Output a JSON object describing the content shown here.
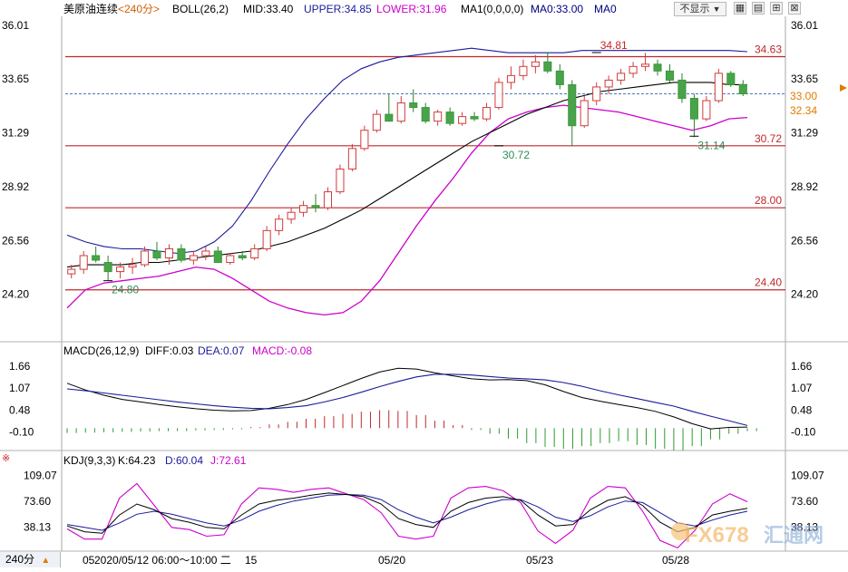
{
  "header": {
    "symbol": "美原油连续",
    "period": "<240分>",
    "boll_label": "BOLL(26,2)",
    "boll_mid": "MID:33.40",
    "boll_upper": "UPPER:34.85",
    "boll_lower": "LOWER:31.96",
    "ma_label": "MA1(0,0,0,0)",
    "ma_value": "MA0:33.00",
    "ma0": "MA0",
    "dropdown": "不显示",
    "colors": {
      "boll_mid": "#000000",
      "upper": "#1a1a9c",
      "lower": "#cc00cc",
      "ma": "#000080"
    }
  },
  "main_panel": {
    "y_ticks": [
      "36.01",
      "33.65",
      "31.29",
      "28.92",
      "26.56",
      "24.20"
    ],
    "price_tag": "33.00",
    "lower_tag": "32.34",
    "h_lines": [
      {
        "value": 34.63,
        "label": "34.63"
      },
      {
        "value": 30.72,
        "label": "30.72"
      },
      {
        "value": 28.0,
        "label": "28.00"
      },
      {
        "value": 24.4,
        "label": "24.40"
      }
    ],
    "annotations": [
      {
        "text": "34.81",
        "value": 34.81,
        "bar": 43,
        "color": "#cc2222"
      },
      {
        "text": "30.72",
        "value": 30.72,
        "bar": 35,
        "color": "#2e8b57"
      },
      {
        "text": "31.14",
        "value": 31.14,
        "bar": 51,
        "color": "#2e8b57"
      },
      {
        "text": "24.80",
        "value": 24.8,
        "bar": 3,
        "color": "#2e8b57"
      }
    ]
  },
  "chart_data": [
    {
      "type": "candlestick",
      "ylim": [
        22.4,
        36.4
      ],
      "bars": [
        {
          "o": 25.1,
          "h": 25.5,
          "l": 24.9,
          "c": 25.3
        },
        {
          "o": 25.3,
          "h": 26.1,
          "l": 25.1,
          "c": 25.9
        },
        {
          "o": 25.9,
          "h": 26.3,
          "l": 25.6,
          "c": 25.7
        },
        {
          "o": 25.6,
          "h": 25.9,
          "l": 24.8,
          "c": 25.2
        },
        {
          "o": 25.2,
          "h": 25.6,
          "l": 24.9,
          "c": 25.4
        },
        {
          "o": 25.4,
          "h": 25.8,
          "l": 25.1,
          "c": 25.5
        },
        {
          "o": 25.5,
          "h": 26.3,
          "l": 25.4,
          "c": 26.1
        },
        {
          "o": 26.1,
          "h": 26.5,
          "l": 25.7,
          "c": 25.8
        },
        {
          "o": 25.8,
          "h": 26.4,
          "l": 25.5,
          "c": 26.2
        },
        {
          "o": 26.2,
          "h": 26.4,
          "l": 25.6,
          "c": 25.7
        },
        {
          "o": 25.7,
          "h": 26.1,
          "l": 25.5,
          "c": 25.9
        },
        {
          "o": 25.9,
          "h": 26.3,
          "l": 25.7,
          "c": 26.1
        },
        {
          "o": 26.1,
          "h": 26.3,
          "l": 25.6,
          "c": 25.6
        },
        {
          "o": 25.6,
          "h": 26.0,
          "l": 25.5,
          "c": 25.9
        },
        {
          "o": 25.9,
          "h": 26.1,
          "l": 25.7,
          "c": 25.8
        },
        {
          "o": 25.8,
          "h": 26.4,
          "l": 25.7,
          "c": 26.2
        },
        {
          "o": 26.2,
          "h": 27.2,
          "l": 26.1,
          "c": 27.0
        },
        {
          "o": 27.0,
          "h": 27.7,
          "l": 26.8,
          "c": 27.5
        },
        {
          "o": 27.5,
          "h": 28.0,
          "l": 27.3,
          "c": 27.8
        },
        {
          "o": 27.8,
          "h": 28.3,
          "l": 27.6,
          "c": 28.1
        },
        {
          "o": 28.1,
          "h": 28.6,
          "l": 27.8,
          "c": 28.0
        },
        {
          "o": 28.0,
          "h": 28.9,
          "l": 27.9,
          "c": 28.7
        },
        {
          "o": 28.7,
          "h": 29.9,
          "l": 28.6,
          "c": 29.7
        },
        {
          "o": 29.7,
          "h": 30.8,
          "l": 29.6,
          "c": 30.6
        },
        {
          "o": 30.6,
          "h": 31.6,
          "l": 30.5,
          "c": 31.4
        },
        {
          "o": 31.4,
          "h": 32.3,
          "l": 31.3,
          "c": 32.1
        },
        {
          "o": 32.1,
          "h": 33.0,
          "l": 31.9,
          "c": 31.8
        },
        {
          "o": 31.8,
          "h": 32.9,
          "l": 31.7,
          "c": 32.6
        },
        {
          "o": 32.6,
          "h": 33.2,
          "l": 32.2,
          "c": 32.4
        },
        {
          "o": 32.4,
          "h": 32.6,
          "l": 31.7,
          "c": 31.8
        },
        {
          "o": 31.8,
          "h": 32.3,
          "l": 31.6,
          "c": 32.2
        },
        {
          "o": 32.2,
          "h": 32.4,
          "l": 31.6,
          "c": 31.7
        },
        {
          "o": 31.7,
          "h": 32.2,
          "l": 31.6,
          "c": 32.0
        },
        {
          "o": 32.0,
          "h": 32.2,
          "l": 31.8,
          "c": 31.9
        },
        {
          "o": 31.9,
          "h": 32.6,
          "l": 31.8,
          "c": 32.4
        },
        {
          "o": 32.4,
          "h": 33.7,
          "l": 32.3,
          "c": 33.5
        },
        {
          "o": 33.5,
          "h": 34.2,
          "l": 33.2,
          "c": 33.8
        },
        {
          "o": 33.8,
          "h": 34.5,
          "l": 33.6,
          "c": 34.2
        },
        {
          "o": 34.2,
          "h": 34.7,
          "l": 33.9,
          "c": 34.4
        },
        {
          "o": 34.4,
          "h": 34.8,
          "l": 33.9,
          "c": 34.0
        },
        {
          "o": 34.0,
          "h": 34.3,
          "l": 33.2,
          "c": 33.4
        },
        {
          "o": 33.4,
          "h": 33.6,
          "l": 30.7,
          "c": 31.6
        },
        {
          "o": 31.6,
          "h": 32.9,
          "l": 31.5,
          "c": 32.7
        },
        {
          "o": 32.7,
          "h": 33.5,
          "l": 32.5,
          "c": 33.3
        },
        {
          "o": 33.3,
          "h": 33.8,
          "l": 33.0,
          "c": 33.6
        },
        {
          "o": 33.6,
          "h": 34.1,
          "l": 33.4,
          "c": 33.9
        },
        {
          "o": 33.9,
          "h": 34.4,
          "l": 33.7,
          "c": 34.2
        },
        {
          "o": 34.2,
          "h": 34.8,
          "l": 34.0,
          "c": 34.3
        },
        {
          "o": 34.3,
          "h": 34.5,
          "l": 33.8,
          "c": 34.0
        },
        {
          "o": 34.0,
          "h": 34.3,
          "l": 33.5,
          "c": 33.6
        },
        {
          "o": 33.6,
          "h": 33.9,
          "l": 32.6,
          "c": 32.8
        },
        {
          "o": 32.8,
          "h": 33.0,
          "l": 31.1,
          "c": 31.9
        },
        {
          "o": 31.9,
          "h": 32.9,
          "l": 31.8,
          "c": 32.7
        },
        {
          "o": 32.7,
          "h": 34.1,
          "l": 32.6,
          "c": 33.9
        },
        {
          "o": 33.9,
          "h": 34.0,
          "l": 33.3,
          "c": 33.4
        },
        {
          "o": 33.4,
          "h": 33.6,
          "l": 32.9,
          "c": 33.0
        }
      ],
      "boll_mid": [
        25.4,
        25.5,
        25.5,
        25.5,
        25.6,
        25.6,
        25.7,
        25.8,
        25.9,
        26.0,
        26.1,
        26.3,
        26.5,
        26.8,
        27.1,
        27.5,
        27.9,
        28.4,
        28.9,
        29.4,
        29.9,
        30.4,
        30.9,
        31.3,
        31.7,
        32.1,
        32.4,
        32.7,
        32.9,
        33.1,
        33.2,
        33.3,
        33.4,
        33.5,
        33.5,
        33.5,
        33.4,
        33.4
      ],
      "boll_upper": [
        26.8,
        26.5,
        26.3,
        26.2,
        26.2,
        26.1,
        26.0,
        26.1,
        26.5,
        27.2,
        28.3,
        29.6,
        30.8,
        31.9,
        32.8,
        33.6,
        34.1,
        34.4,
        34.6,
        34.7,
        34.8,
        34.9,
        35.0,
        34.9,
        34.8,
        34.8,
        34.8,
        34.8,
        34.9,
        34.9,
        34.9,
        34.9,
        34.9,
        34.9,
        34.9,
        34.9,
        34.9,
        34.85
      ],
      "boll_lower": [
        23.6,
        24.4,
        24.7,
        24.8,
        24.9,
        25.0,
        25.2,
        25.4,
        25.3,
        24.9,
        24.4,
        23.9,
        23.6,
        23.4,
        23.3,
        23.4,
        23.9,
        24.8,
        26.0,
        27.2,
        28.3,
        29.3,
        30.4,
        31.3,
        31.9,
        32.2,
        32.4,
        32.5,
        32.4,
        32.3,
        32.2,
        32.0,
        31.8,
        31.6,
        31.4,
        31.6,
        31.9,
        31.96
      ]
    },
    {
      "type": "bar",
      "title": "MACD(26,12,9)",
      "legend": [
        "DIFF:0.03",
        "DEA:0.07",
        "MACD:-0.08"
      ],
      "ylim": [
        -0.55,
        1.85
      ],
      "y_ticks": [
        "1.66",
        "1.07",
        "0.48",
        "-0.10"
      ],
      "diff": [
        1.2,
        1.02,
        0.88,
        0.77,
        0.7,
        0.63,
        0.57,
        0.52,
        0.48,
        0.46,
        0.47,
        0.53,
        0.63,
        0.77,
        0.95,
        1.14,
        1.33,
        1.5,
        1.6,
        1.58,
        1.48,
        1.4,
        1.32,
        1.29,
        1.3,
        1.27,
        1.16,
        0.98,
        0.82,
        0.72,
        0.63,
        0.55,
        0.45,
        0.3,
        0.12,
        -0.02,
        0.02,
        0.03
      ],
      "dea": [
        1.05,
        1.0,
        0.94,
        0.88,
        0.82,
        0.76,
        0.7,
        0.65,
        0.6,
        0.56,
        0.53,
        0.52,
        0.55,
        0.6,
        0.7,
        0.82,
        0.96,
        1.11,
        1.25,
        1.37,
        1.44,
        1.44,
        1.42,
        1.38,
        1.34,
        1.32,
        1.29,
        1.22,
        1.12,
        1.0,
        0.89,
        0.79,
        0.69,
        0.59,
        0.45,
        0.32,
        0.2,
        0.07
      ],
      "macd": [
        -0.13,
        -0.12,
        -0.11,
        -0.1,
        -0.09,
        -0.08,
        -0.08,
        -0.06,
        -0.05,
        -0.03,
        0.03,
        0.1,
        0.17,
        0.25,
        0.32,
        0.38,
        0.44,
        0.48,
        0.46,
        0.35,
        0.2,
        0.08,
        -0.05,
        -0.15,
        -0.28,
        -0.4,
        -0.5,
        -0.55,
        -0.48,
        -0.4,
        -0.35,
        -0.45,
        -0.55,
        -0.6,
        -0.48,
        -0.3,
        -0.15,
        -0.08
      ]
    },
    {
      "type": "line",
      "title": "KDJ(9,3,3)",
      "legend": [
        "K:64.23",
        "D:60.04",
        "J:72.61"
      ],
      "ylim": [
        8,
        122
      ],
      "y_ticks": [
        "109.07",
        "73.60",
        "38.13"
      ],
      "k": [
        40,
        32,
        30,
        55,
        70,
        62,
        50,
        45,
        38,
        36,
        55,
        70,
        75,
        78,
        82,
        85,
        83,
        80,
        70,
        50,
        42,
        38,
        60,
        72,
        78,
        80,
        75,
        55,
        40,
        42,
        62,
        75,
        80,
        68,
        45,
        32,
        38,
        55,
        60,
        64
      ],
      "d": [
        42,
        38,
        34,
        44,
        56,
        60,
        56,
        50,
        44,
        40,
        48,
        60,
        68,
        74,
        78,
        82,
        83,
        82,
        76,
        62,
        52,
        44,
        52,
        62,
        70,
        76,
        76,
        66,
        52,
        46,
        54,
        66,
        74,
        72,
        58,
        44,
        40,
        48,
        55,
        60
      ],
      "j": [
        36,
        22,
        22,
        78,
        98,
        68,
        38,
        35,
        26,
        28,
        70,
        92,
        90,
        86,
        90,
        92,
        84,
        76,
        58,
        26,
        22,
        26,
        78,
        92,
        94,
        88,
        72,
        33,
        16,
        34,
        78,
        94,
        92,
        60,
        20,
        10,
        34,
        70,
        84,
        73
      ]
    }
  ],
  "kdj_panel": {
    "marker": "※"
  },
  "x_axis": {
    "labels": [
      "05",
      "2020/05/12 06:00～10:00 二",
      "15",
      "05/20",
      "05/23",
      "05/28"
    ],
    "period_button": "240分"
  },
  "watermark": {
    "brand": "FX678",
    "cn": "汇通网"
  }
}
